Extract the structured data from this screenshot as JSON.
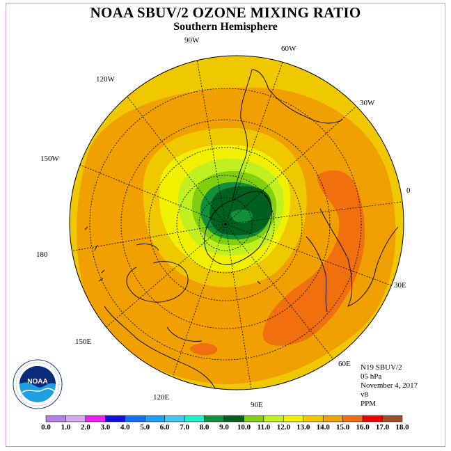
{
  "title": "NOAA SBUV/2 OZONE MIXING RATIO",
  "subtitle": "Southern Hemisphere",
  "longitude_labels": [
    "90W",
    "60W",
    "30W",
    "0",
    "30E",
    "60E",
    "90E",
    "120E",
    "150E",
    "180",
    "150W",
    "120W"
  ],
  "info": {
    "line1": "N19 SBUV/2",
    "line2": "05 hPa",
    "line3": "November 4, 2017",
    "line4": "v8",
    "line5": "PPM"
  },
  "logo_text": "NOAA",
  "logo_ring_text": "NATIONAL OCEANIC AND ATMOSPHERIC ADMINISTRATION · U.S. DEPARTMENT OF COMMERCE",
  "colorbar": {
    "ticks": [
      "0.0",
      "1.0",
      "2.0",
      "3.0",
      "4.0",
      "5.0",
      "6.0",
      "7.0",
      "8.0",
      "9.0",
      "10.0",
      "11.0",
      "12.0",
      "13.0",
      "14.0",
      "15.0",
      "16.0",
      "17.0",
      "18.0"
    ],
    "colors": [
      "#b57fe6",
      "#d8a8f0",
      "#f020f0",
      "#1010e0",
      "#1070f0",
      "#20a0f0",
      "#40c8f0",
      "#20f0c8",
      "#10903a",
      "#006020",
      "#80d010",
      "#c0f020",
      "#f0f000",
      "#f0c800",
      "#f0a000",
      "#f07010",
      "#f00000",
      "#a05028"
    ]
  }
}
